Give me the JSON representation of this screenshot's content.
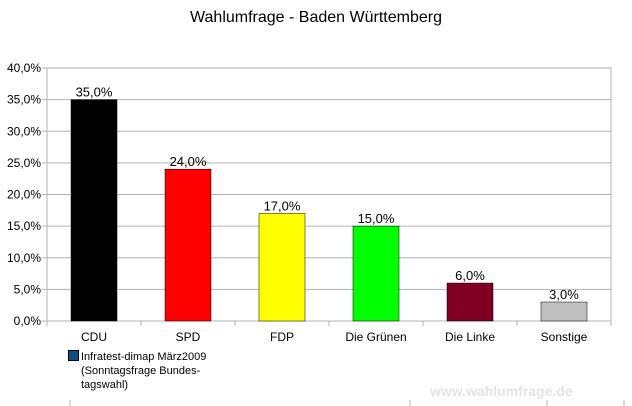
{
  "chart_data": {
    "type": "bar",
    "title": "Wahlumfrage - Baden Württemberg",
    "categories": [
      "CDU",
      "SPD",
      "FDP",
      "Die Grünen",
      "Die Linke",
      "Sonstige"
    ],
    "values": [
      35.0,
      24.0,
      17.0,
      15.0,
      6.0,
      3.0
    ],
    "data_labels": [
      "35,0%",
      "24,0%",
      "17,0%",
      "15,0%",
      "6,0%",
      "3,0%"
    ],
    "colors": [
      "#000000",
      "#ff0000",
      "#ffff00",
      "#00ff00",
      "#7f0023",
      "#c0c0c0"
    ],
    "ylim": [
      0,
      40
    ],
    "yticks": [
      0,
      5,
      10,
      15,
      20,
      25,
      30,
      35,
      40
    ],
    "ytick_labels": [
      "0,0%",
      "5,0%",
      "10,0%",
      "15,0%",
      "20,0%",
      "25,0%",
      "30,0%",
      "35,0%",
      "40,0%"
    ],
    "xlabel": "",
    "ylabel": "",
    "grid": true,
    "legend": {
      "placement": "bottom-left",
      "label": "Infratest-dimap März2009",
      "label_line2": "(Sonntagsfrage Bundes-",
      "label_line3": "tagswahl)",
      "color": "#0e4c8a"
    }
  },
  "watermark": "www.wahlumfrage.de"
}
